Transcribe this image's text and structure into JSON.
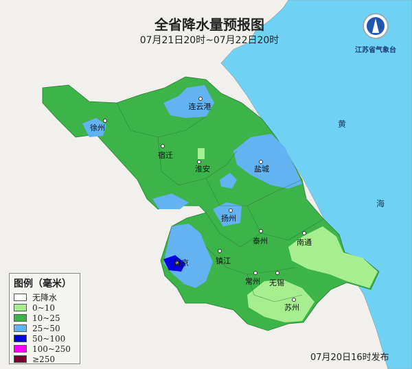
{
  "title": "全省降水量预报图",
  "period": "07月21日20时~07月22日20时",
  "logo": {
    "text": "江苏省气象台"
  },
  "issued": "07月20日16时发布",
  "sea_labels": [
    "黄",
    "海"
  ],
  "colors": {
    "sea": "#6fd2f5",
    "land": "#f1f0ec",
    "l0": "#ffffff",
    "l1": "#a6ee90",
    "l2": "#3cb44a",
    "l3": "#63b3f2",
    "l4": "#0000e0",
    "l5": "#ff00ff",
    "l6": "#7a0030"
  },
  "legend": {
    "title": "图例（毫米）",
    "items": [
      {
        "label": "无降水",
        "color": "#ffffff"
      },
      {
        "label": "0~10",
        "color": "#a6ee90"
      },
      {
        "label": "10~25",
        "color": "#3cb44a"
      },
      {
        "label": "25~50",
        "color": "#63b3f2"
      },
      {
        "label": "50~100",
        "color": "#0000e0"
      },
      {
        "label": "100~250",
        "color": "#ff00ff"
      },
      {
        "label": "≥250",
        "color": "#7a0030"
      }
    ]
  },
  "cities": [
    "连云港",
    "徐州",
    "宿迁",
    "淮安",
    "盐城",
    "扬州",
    "泰州",
    "南通",
    "南京",
    "镇江",
    "常州",
    "无锡",
    "苏州"
  ]
}
